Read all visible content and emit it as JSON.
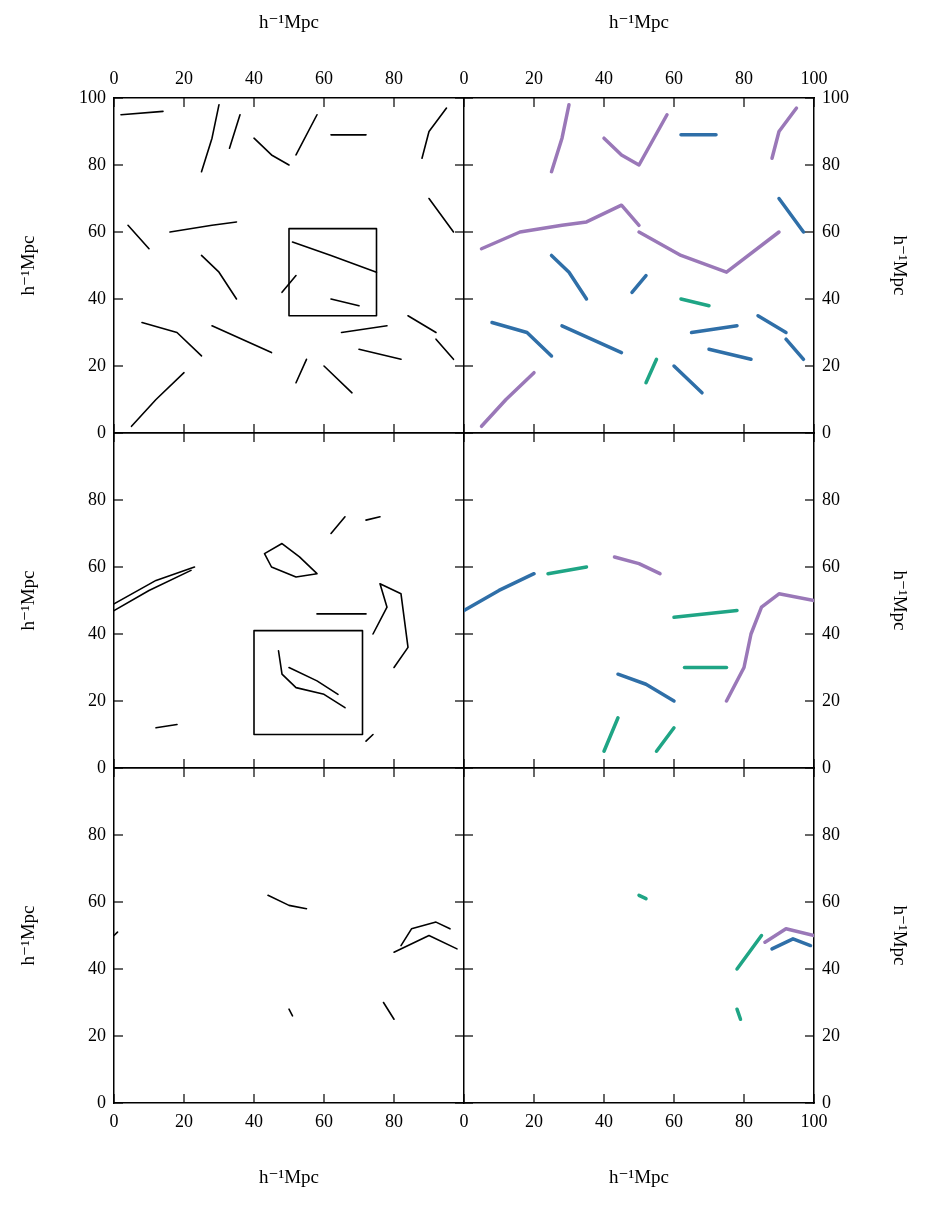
{
  "chart_data": [
    {
      "type": "line",
      "x_label": "h⁻¹Mpc",
      "y_label": "h⁻¹Mpc",
      "xlim": [
        0,
        100
      ],
      "ylim": [
        0,
        100
      ],
      "xticks": [
        0,
        20,
        40,
        60,
        80
      ],
      "yticks": [
        0,
        20,
        40,
        60,
        80,
        100
      ],
      "series": [
        {
          "color": "#000000",
          "x": [
            25,
            28,
            30
          ],
          "values": [
            78,
            88,
            98
          ]
        },
        {
          "color": "#000000",
          "x": [
            33,
            36
          ],
          "values": [
            85,
            95
          ]
        },
        {
          "color": "#000000",
          "x": [
            40,
            45,
            50
          ],
          "values": [
            88,
            83,
            80
          ]
        },
        {
          "color": "#000000",
          "x": [
            52,
            58
          ],
          "values": [
            83,
            95
          ]
        },
        {
          "color": "#000000",
          "x": [
            62,
            72
          ],
          "values": [
            89,
            89
          ]
        },
        {
          "color": "#000000",
          "x": [
            88,
            90,
            95
          ],
          "values": [
            82,
            90,
            97
          ]
        },
        {
          "color": "#000000",
          "x": [
            2,
            14
          ],
          "values": [
            95,
            96
          ]
        },
        {
          "color": "#000000",
          "x": [
            16,
            28,
            35
          ],
          "values": [
            60,
            62,
            63
          ]
        },
        {
          "color": "#000000",
          "x": [
            51,
            62,
            75
          ],
          "values": [
            57,
            53,
            48
          ]
        },
        {
          "color": "#000000",
          "x": [
            52,
            48
          ],
          "values": [
            47,
            42
          ]
        },
        {
          "color": "#000000",
          "x": [
            35,
            30,
            25
          ],
          "values": [
            40,
            48,
            53
          ]
        },
        {
          "color": "#000000",
          "x": [
            10,
            4
          ],
          "values": [
            55,
            62
          ]
        },
        {
          "color": "#000000",
          "x": [
            8,
            18,
            25
          ],
          "values": [
            33,
            30,
            23
          ]
        },
        {
          "color": "#000000",
          "x": [
            28,
            45
          ],
          "values": [
            32,
            24
          ]
        },
        {
          "color": "#000000",
          "x": [
            62,
            70
          ],
          "values": [
            40,
            38
          ]
        },
        {
          "color": "#000000",
          "x": [
            65,
            78
          ],
          "values": [
            30,
            32
          ]
        },
        {
          "color": "#000000",
          "x": [
            70,
            82
          ],
          "values": [
            25,
            22
          ]
        },
        {
          "color": "#000000",
          "x": [
            84,
            92
          ],
          "values": [
            35,
            30
          ]
        },
        {
          "color": "#000000",
          "x": [
            90,
            97
          ],
          "values": [
            70,
            60
          ]
        },
        {
          "color": "#000000",
          "x": [
            5,
            12,
            20
          ],
          "values": [
            2,
            10,
            18
          ]
        },
        {
          "color": "#000000",
          "x": [
            52,
            55
          ],
          "values": [
            15,
            22
          ]
        },
        {
          "color": "#000000",
          "x": [
            60,
            68
          ],
          "values": [
            20,
            12
          ]
        },
        {
          "color": "#000000",
          "x": [
            92,
            97
          ],
          "values": [
            28,
            22
          ]
        },
        {
          "color": "#000000",
          "x": [
            50,
            75,
            75,
            50,
            50
          ],
          "values": [
            35,
            35,
            61,
            61,
            35
          ]
        }
      ]
    },
    {
      "type": "line",
      "x_label": "h⁻¹Mpc",
      "y_label": "h⁻¹Mpc",
      "xlim": [
        0,
        100
      ],
      "ylim": [
        0,
        100
      ],
      "xticks": [
        0,
        20,
        40,
        60,
        80,
        100
      ],
      "yticks": [
        0,
        20,
        40,
        60,
        80,
        100
      ],
      "series": [
        {
          "color": "#9a78b8",
          "x": [
            25,
            28,
            30
          ],
          "values": [
            78,
            88,
            98
          ]
        },
        {
          "color": "#9a78b8",
          "x": [
            40,
            45,
            50,
            58
          ],
          "values": [
            88,
            83,
            80,
            95
          ]
        },
        {
          "color": "#2f6fa8",
          "x": [
            62,
            72
          ],
          "values": [
            89,
            89
          ]
        },
        {
          "color": "#9a78b8",
          "x": [
            88,
            90,
            95
          ],
          "values": [
            82,
            90,
            97
          ]
        },
        {
          "color": "#9a78b8",
          "x": [
            5,
            16,
            28,
            35,
            45,
            50
          ],
          "values": [
            55,
            60,
            62,
            63,
            68,
            62
          ]
        },
        {
          "color": "#9a78b8",
          "x": [
            50,
            62,
            75,
            90
          ],
          "values": [
            60,
            53,
            48,
            60
          ]
        },
        {
          "color": "#2f6fa8",
          "x": [
            52,
            48
          ],
          "values": [
            47,
            42
          ]
        },
        {
          "color": "#2f6fa8",
          "x": [
            35,
            30,
            25
          ],
          "values": [
            40,
            48,
            53
          ]
        },
        {
          "color": "#2f6fa8",
          "x": [
            8,
            18,
            25
          ],
          "values": [
            33,
            30,
            23
          ]
        },
        {
          "color": "#2f6fa8",
          "x": [
            28,
            45
          ],
          "values": [
            32,
            24
          ]
        },
        {
          "color": "#1fa585",
          "x": [
            62,
            70
          ],
          "values": [
            40,
            38
          ]
        },
        {
          "color": "#2f6fa8",
          "x": [
            65,
            78
          ],
          "values": [
            30,
            32
          ]
        },
        {
          "color": "#2f6fa8",
          "x": [
            70,
            82
          ],
          "values": [
            25,
            22
          ]
        },
        {
          "color": "#2f6fa8",
          "x": [
            84,
            92
          ],
          "values": [
            35,
            30
          ]
        },
        {
          "color": "#2f6fa8",
          "x": [
            90,
            97
          ],
          "values": [
            70,
            60
          ]
        },
        {
          "color": "#9a78b8",
          "x": [
            5,
            12,
            20
          ],
          "values": [
            2,
            10,
            18
          ]
        },
        {
          "color": "#1fa585",
          "x": [
            52,
            55
          ],
          "values": [
            15,
            22
          ]
        },
        {
          "color": "#2f6fa8",
          "x": [
            60,
            68
          ],
          "values": [
            20,
            12
          ]
        },
        {
          "color": "#2f6fa8",
          "x": [
            92,
            97
          ],
          "values": [
            28,
            22
          ]
        }
      ]
    },
    {
      "type": "line",
      "y_label": "h⁻¹Mpc",
      "tick_labels": "y",
      "xlim": [
        0,
        100
      ],
      "ylim": [
        0,
        100
      ],
      "xticks": [
        0,
        20,
        40,
        60,
        80,
        100
      ],
      "yticks": [
        0,
        20,
        40,
        60,
        80
      ],
      "series": [
        {
          "color": "#000000",
          "x": [
            0,
            10,
            22
          ],
          "values": [
            47,
            53,
            59
          ]
        },
        {
          "color": "#000000",
          "x": [
            0,
            12,
            23
          ],
          "values": [
            49,
            56,
            60
          ]
        },
        {
          "color": "#000000",
          "x": [
            43,
            48,
            53,
            58,
            52,
            45,
            43
          ],
          "values": [
            64,
            67,
            63,
            58,
            57,
            60,
            64
          ]
        },
        {
          "color": "#000000",
          "x": [
            62,
            66
          ],
          "values": [
            70,
            75
          ]
        },
        {
          "color": "#000000",
          "x": [
            72,
            76
          ],
          "values": [
            74,
            75
          ]
        },
        {
          "color": "#000000",
          "x": [
            58,
            72
          ],
          "values": [
            46,
            46
          ]
        },
        {
          "color": "#000000",
          "x": [
            47,
            48,
            52,
            60,
            66
          ],
          "values": [
            35,
            28,
            24,
            22,
            18
          ]
        },
        {
          "color": "#000000",
          "x": [
            50,
            58,
            64
          ],
          "values": [
            30,
            26,
            22
          ]
        },
        {
          "color": "#000000",
          "x": [
            74,
            78,
            76,
            82,
            84,
            80
          ],
          "values": [
            40,
            48,
            55,
            52,
            36,
            30
          ]
        },
        {
          "color": "#000000",
          "x": [
            12,
            18
          ],
          "values": [
            12,
            13
          ]
        },
        {
          "color": "#000000",
          "x": [
            72,
            74
          ],
          "values": [
            8,
            10
          ]
        },
        {
          "color": "#000000",
          "x": [
            40,
            71,
            71,
            40,
            40
          ],
          "values": [
            10,
            10,
            41,
            41,
            10
          ]
        }
      ]
    },
    {
      "type": "line",
      "y_label": "h⁻¹Mpc",
      "tick_labels": "y",
      "xlim": [
        0,
        100
      ],
      "ylim": [
        0,
        100
      ],
      "xticks": [
        0,
        20,
        40,
        60,
        80,
        100
      ],
      "yticks": [
        0,
        20,
        40,
        60,
        80
      ],
      "series": [
        {
          "color": "#2f6fa8",
          "x": [
            0,
            10,
            20
          ],
          "values": [
            47,
            53,
            58
          ]
        },
        {
          "color": "#9a78b8",
          "x": [
            43,
            50,
            56
          ],
          "values": [
            63,
            61,
            58
          ]
        },
        {
          "color": "#2f6fa8",
          "x": [
            44,
            52,
            60
          ],
          "values": [
            28,
            25,
            20
          ]
        },
        {
          "color": "#9a78b8",
          "x": [
            75,
            80,
            82,
            85,
            90,
            100
          ],
          "values": [
            20,
            30,
            40,
            48,
            52,
            50
          ]
        },
        {
          "color": "#1fa585",
          "x": [
            24,
            35
          ],
          "values": [
            58,
            60
          ]
        },
        {
          "color": "#1fa585",
          "x": [
            63,
            75
          ],
          "values": [
            30,
            30
          ]
        },
        {
          "color": "#1fa585",
          "x": [
            60,
            78
          ],
          "values": [
            45,
            47
          ]
        },
        {
          "color": "#1fa585",
          "x": [
            55,
            60
          ],
          "values": [
            5,
            12
          ]
        },
        {
          "color": "#1fa585",
          "x": [
            40,
            44
          ],
          "values": [
            5,
            15
          ]
        }
      ]
    },
    {
      "type": "line",
      "x_label": "h⁻¹Mpc",
      "y_label": "h⁻¹Mpc",
      "xlim": [
        0,
        100
      ],
      "ylim": [
        0,
        100
      ],
      "xticks": [
        0,
        20,
        40,
        60,
        80
      ],
      "yticks": [
        0,
        20,
        40,
        60,
        80
      ],
      "series": [
        {
          "color": "#000000",
          "x": [
            44,
            50,
            55
          ],
          "values": [
            62,
            59,
            58
          ]
        },
        {
          "color": "#000000",
          "x": [
            82,
            85,
            92,
            96
          ],
          "values": [
            47,
            52,
            54,
            52
          ]
        },
        {
          "color": "#000000",
          "x": [
            80,
            90,
            98
          ],
          "values": [
            45,
            50,
            46
          ]
        },
        {
          "color": "#000000",
          "x": [
            77,
            80
          ],
          "values": [
            30,
            25
          ]
        },
        {
          "color": "#000000",
          "x": [
            50,
            51
          ],
          "values": [
            28,
            26
          ]
        },
        {
          "color": "#000000",
          "x": [
            0,
            1
          ],
          "values": [
            50,
            51
          ]
        }
      ]
    },
    {
      "type": "line",
      "x_label": "h⁻¹Mpc",
      "y_label": "h⁻¹Mpc",
      "xlim": [
        0,
        100
      ],
      "ylim": [
        0,
        100
      ],
      "xticks": [
        0,
        20,
        40,
        60,
        80,
        100
      ],
      "yticks": [
        0,
        20,
        40,
        60,
        80
      ],
      "series": [
        {
          "color": "#9a78b8",
          "x": [
            86,
            92,
            100
          ],
          "values": [
            48,
            52,
            50
          ]
        },
        {
          "color": "#2f6fa8",
          "x": [
            88,
            94,
            99
          ],
          "values": [
            46,
            49,
            47
          ]
        },
        {
          "color": "#1fa585",
          "x": [
            78,
            85
          ],
          "values": [
            40,
            50
          ]
        },
        {
          "color": "#1fa585",
          "x": [
            50,
            52
          ],
          "values": [
            62,
            61
          ]
        },
        {
          "color": "#1fa585",
          "x": [
            78,
            79
          ],
          "values": [
            28,
            25
          ]
        }
      ]
    }
  ]
}
